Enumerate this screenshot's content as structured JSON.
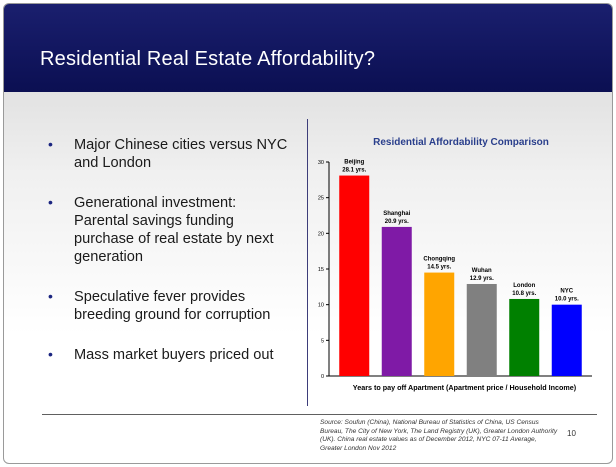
{
  "slide": {
    "title": "Residential Real Estate Affordability?",
    "bullets": [
      "Major Chinese cities versus NYC and London",
      "Generational investment: Parental savings funding purchase of real estate by next generation",
      "Speculative fever provides breeding ground for corruption",
      "Mass market buyers priced out"
    ],
    "bullet_glyph": "•",
    "source": "Source: Soufun (China), National Bureau of Statistics of China, US Census Bureau, The City of New York, The Land Registry (UK), Greater London Authority (UK). China real estate values as of December 2012, NYC 07-11 Average, Greater London Nov 2012",
    "page_number": "10",
    "colors": {
      "title_bar": "#0f1460",
      "title_text": "#ffffff",
      "chart_title": "#2a3f8c"
    }
  },
  "chart_data": {
    "type": "bar",
    "title": "Residential Affordability Comparison",
    "xlabel": "Years to pay off Apartment  (Apartment price / Household Income)",
    "ylabel": "",
    "ylim": [
      0,
      30
    ],
    "yticks": [
      0,
      5,
      10,
      15,
      20,
      25,
      30
    ],
    "grid": false,
    "legend": "none",
    "categories": [
      "Beijing",
      "Shanghai",
      "Chongqing",
      "Wuhan",
      "London",
      "NYC"
    ],
    "values": [
      28.1,
      20.9,
      14.5,
      12.9,
      10.8,
      10.0
    ],
    "data_labels": [
      "28.1 yrs.",
      "20.9 yrs.",
      "14.5 yrs.",
      "12.9 yrs.",
      "10.8 yrs.",
      "10.0 yrs."
    ],
    "colors": [
      "#ff0000",
      "#7f1aa6",
      "#ffa500",
      "#808080",
      "#008000",
      "#0000ff"
    ]
  }
}
